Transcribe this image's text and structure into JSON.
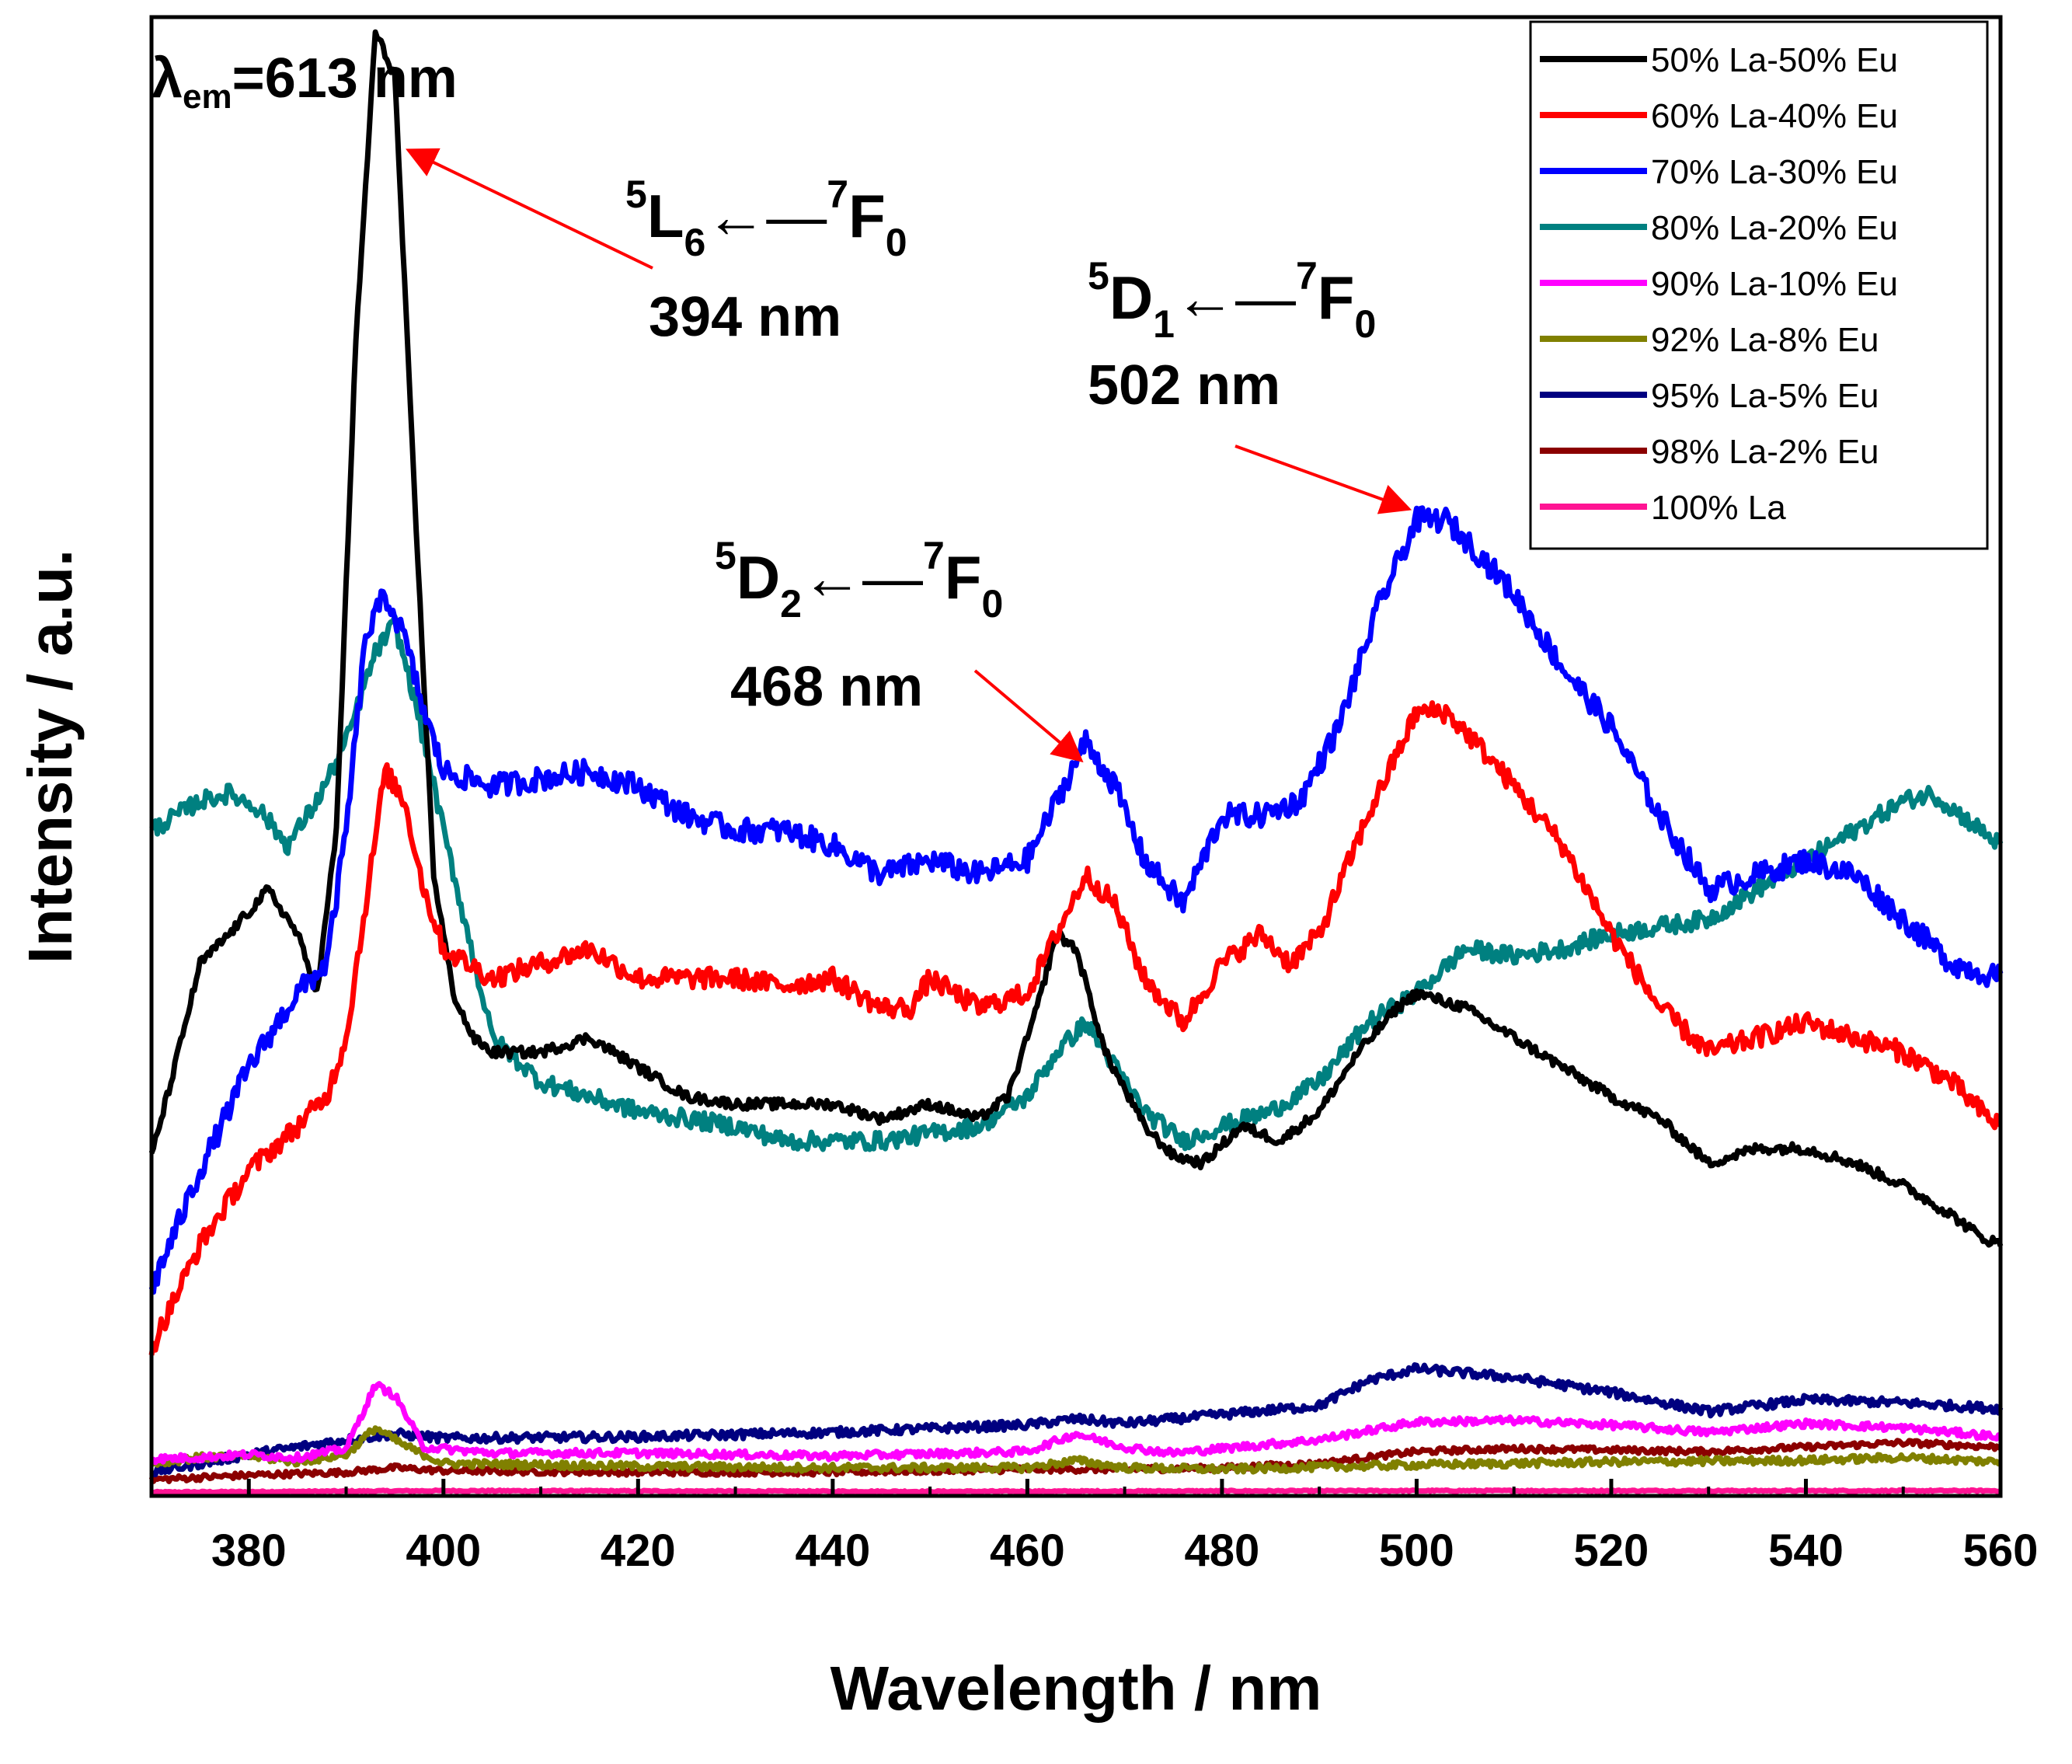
{
  "chart_data": {
    "type": "line",
    "xlabel": "Wavelength / nm",
    "ylabel": "Intensity / a.u.",
    "xlim": [
      370,
      560
    ],
    "ylim": [
      0,
      100
    ],
    "xticks": [
      "380",
      "400",
      "420",
      "440",
      "460",
      "480",
      "500",
      "520",
      "540",
      "560"
    ],
    "yticks_visible": false,
    "legend_position": "top-right",
    "series": [
      {
        "name": "50% La-50% Eu",
        "color": "#000000",
        "points": [
          [
            370,
            23
          ],
          [
            372,
            28
          ],
          [
            375,
            36
          ],
          [
            378,
            38
          ],
          [
            382,
            41
          ],
          [
            385,
            38
          ],
          [
            387,
            34
          ],
          [
            389,
            45
          ],
          [
            391,
            78
          ],
          [
            393,
            99
          ],
          [
            395,
            96
          ],
          [
            397,
            68
          ],
          [
            399,
            42
          ],
          [
            401,
            34
          ],
          [
            403,
            31
          ],
          [
            405,
            30
          ],
          [
            410,
            30
          ],
          [
            415,
            31
          ],
          [
            420,
            29
          ],
          [
            425,
            27
          ],
          [
            430,
            26.5
          ],
          [
            435,
            26.5
          ],
          [
            440,
            26.5
          ],
          [
            445,
            25.5
          ],
          [
            450,
            26.5
          ],
          [
            455,
            25.5
          ],
          [
            458,
            27
          ],
          [
            461,
            33
          ],
          [
            463,
            38
          ],
          [
            465,
            37
          ],
          [
            468,
            30
          ],
          [
            472,
            25
          ],
          [
            475,
            23
          ],
          [
            478,
            22.5
          ],
          [
            482,
            25
          ],
          [
            486,
            24
          ],
          [
            490,
            26
          ],
          [
            494,
            30
          ],
          [
            498,
            33
          ],
          [
            500,
            34
          ],
          [
            505,
            33
          ],
          [
            510,
            31
          ],
          [
            515,
            29
          ],
          [
            520,
            27
          ],
          [
            525,
            25.5
          ],
          [
            530,
            22.5
          ],
          [
            535,
            23.5
          ],
          [
            540,
            23.5
          ],
          [
            545,
            22.5
          ],
          [
            550,
            21
          ],
          [
            555,
            19
          ],
          [
            558,
            17.5
          ],
          [
            560,
            17
          ]
        ]
      },
      {
        "name": "60% La-40% Eu",
        "color": "#ff0000",
        "points": [
          [
            370,
            10
          ],
          [
            375,
            17
          ],
          [
            380,
            22
          ],
          [
            385,
            25
          ],
          [
            388,
            27
          ],
          [
            390,
            31
          ],
          [
            392,
            40
          ],
          [
            394,
            49
          ],
          [
            396,
            47
          ],
          [
            398,
            41
          ],
          [
            400,
            37
          ],
          [
            405,
            35
          ],
          [
            410,
            36
          ],
          [
            415,
            37
          ],
          [
            420,
            35
          ],
          [
            425,
            35
          ],
          [
            430,
            35
          ],
          [
            435,
            34.5
          ],
          [
            440,
            35
          ],
          [
            445,
            33
          ],
          [
            448,
            33
          ],
          [
            450,
            35
          ],
          [
            455,
            33
          ],
          [
            460,
            34
          ],
          [
            463,
            38
          ],
          [
            466,
            42
          ],
          [
            469,
            40
          ],
          [
            472,
            35
          ],
          [
            476,
            32
          ],
          [
            480,
            36
          ],
          [
            484,
            38
          ],
          [
            487,
            36
          ],
          [
            490,
            38
          ],
          [
            495,
            46
          ],
          [
            500,
            53
          ],
          [
            503,
            53
          ],
          [
            506,
            51
          ],
          [
            510,
            48
          ],
          [
            515,
            44
          ],
          [
            520,
            38
          ],
          [
            525,
            33
          ],
          [
            530,
            30
          ],
          [
            535,
            31
          ],
          [
            540,
            32
          ],
          [
            545,
            31
          ],
          [
            550,
            30
          ],
          [
            555,
            28
          ],
          [
            558,
            26
          ],
          [
            560,
            25
          ]
        ]
      },
      {
        "name": "70% La-30% Eu",
        "color": "#0000ff",
        "points": [
          [
            370,
            14
          ],
          [
            375,
            22
          ],
          [
            380,
            29
          ],
          [
            385,
            34
          ],
          [
            388,
            36
          ],
          [
            390,
            45
          ],
          [
            392,
            58
          ],
          [
            394,
            61
          ],
          [
            396,
            58
          ],
          [
            398,
            53
          ],
          [
            400,
            49
          ],
          [
            405,
            48
          ],
          [
            410,
            48.5
          ],
          [
            415,
            49
          ],
          [
            420,
            48
          ],
          [
            425,
            46
          ],
          [
            430,
            45
          ],
          [
            435,
            45
          ],
          [
            440,
            44
          ],
          [
            445,
            42
          ],
          [
            450,
            43
          ],
          [
            455,
            42
          ],
          [
            460,
            43
          ],
          [
            463,
            47
          ],
          [
            466,
            51
          ],
          [
            469,
            48
          ],
          [
            472,
            43
          ],
          [
            476,
            40
          ],
          [
            480,
            46
          ],
          [
            484,
            46
          ],
          [
            488,
            47
          ],
          [
            492,
            52
          ],
          [
            496,
            60
          ],
          [
            500,
            66
          ],
          [
            503,
            66
          ],
          [
            506,
            64
          ],
          [
            510,
            61
          ],
          [
            515,
            56
          ],
          [
            520,
            52
          ],
          [
            525,
            46
          ],
          [
            530,
            41
          ],
          [
            535,
            42
          ],
          [
            540,
            43
          ],
          [
            545,
            42
          ],
          [
            550,
            39
          ],
          [
            555,
            36
          ],
          [
            560,
            35
          ]
        ]
      },
      {
        "name": "80% La-20% Eu",
        "color": "#008080",
        "points": [
          [
            370,
            45
          ],
          [
            375,
            47
          ],
          [
            378,
            47.5
          ],
          [
            381,
            46.5
          ],
          [
            384,
            44
          ],
          [
            387,
            47
          ],
          [
            390,
            51
          ],
          [
            393,
            57
          ],
          [
            395,
            59
          ],
          [
            397,
            54
          ],
          [
            400,
            45
          ],
          [
            405,
            31
          ],
          [
            410,
            28
          ],
          [
            415,
            27
          ],
          [
            420,
            26
          ],
          [
            425,
            25.5
          ],
          [
            430,
            25
          ],
          [
            435,
            24
          ],
          [
            440,
            24
          ],
          [
            445,
            24
          ],
          [
            450,
            24.5
          ],
          [
            455,
            25
          ],
          [
            460,
            27
          ],
          [
            463,
            30
          ],
          [
            466,
            32
          ],
          [
            469,
            29
          ],
          [
            472,
            26
          ],
          [
            476,
            24
          ],
          [
            480,
            25
          ],
          [
            485,
            26
          ],
          [
            490,
            28
          ],
          [
            495,
            32
          ],
          [
            500,
            34
          ],
          [
            505,
            37
          ],
          [
            510,
            36.5
          ],
          [
            515,
            37
          ],
          [
            520,
            38
          ],
          [
            525,
            38.5
          ],
          [
            530,
            39
          ],
          [
            535,
            41
          ],
          [
            540,
            43
          ],
          [
            545,
            45
          ],
          [
            550,
            47
          ],
          [
            553,
            47.5
          ],
          [
            556,
            46
          ],
          [
            560,
            44
          ]
        ]
      },
      {
        "name": "90% La-10% Eu",
        "color": "#ff00ff",
        "points": [
          [
            370,
            2.5
          ],
          [
            375,
            2.6
          ],
          [
            380,
            2.8
          ],
          [
            385,
            2.6
          ],
          [
            390,
            3.2
          ],
          [
            393,
            7.5
          ],
          [
            395,
            6.8
          ],
          [
            398,
            3.3
          ],
          [
            405,
            2.9
          ],
          [
            420,
            2.9
          ],
          [
            440,
            2.7
          ],
          [
            460,
            3.0
          ],
          [
            465,
            4.2
          ],
          [
            470,
            3.3
          ],
          [
            475,
            2.9
          ],
          [
            490,
            3.8
          ],
          [
            500,
            5.0
          ],
          [
            510,
            5.1
          ],
          [
            520,
            4.8
          ],
          [
            530,
            4.3
          ],
          [
            540,
            4.9
          ],
          [
            550,
            4.6
          ],
          [
            560,
            4.0
          ]
        ]
      },
      {
        "name": "92% La-8% Eu",
        "color": "#808000",
        "points": [
          [
            370,
            2.2
          ],
          [
            375,
            2.6
          ],
          [
            380,
            2.7
          ],
          [
            385,
            2.3
          ],
          [
            390,
            2.8
          ],
          [
            393,
            4.6
          ],
          [
            396,
            3.4
          ],
          [
            400,
            2.2
          ],
          [
            420,
            2.0
          ],
          [
            440,
            1.9
          ],
          [
            460,
            1.9
          ],
          [
            465,
            2.4
          ],
          [
            470,
            1.9
          ],
          [
            480,
            1.8
          ],
          [
            500,
            2.1
          ],
          [
            520,
            2.3
          ],
          [
            540,
            2.4
          ],
          [
            550,
            2.6
          ],
          [
            560,
            2.3
          ]
        ]
      },
      {
        "name": "95% La-5% Eu",
        "color": "#000080",
        "points": [
          [
            370,
            1.6
          ],
          [
            380,
            2.8
          ],
          [
            390,
            3.8
          ],
          [
            395,
            4.2
          ],
          [
            400,
            3.9
          ],
          [
            420,
            4.0
          ],
          [
            440,
            4.3
          ],
          [
            460,
            4.8
          ],
          [
            465,
            5.2
          ],
          [
            470,
            4.9
          ],
          [
            480,
            5.5
          ],
          [
            490,
            6.1
          ],
          [
            495,
            7.8
          ],
          [
            500,
            8.6
          ],
          [
            505,
            8.3
          ],
          [
            510,
            8.0
          ],
          [
            520,
            7.0
          ],
          [
            530,
            5.7
          ],
          [
            540,
            6.5
          ],
          [
            550,
            6.3
          ],
          [
            560,
            5.9
          ]
        ]
      },
      {
        "name": "98% La-2% Eu",
        "color": "#8b0000",
        "points": [
          [
            370,
            1.1
          ],
          [
            380,
            1.4
          ],
          [
            390,
            1.6
          ],
          [
            395,
            1.9
          ],
          [
            400,
            1.7
          ],
          [
            420,
            1.6
          ],
          [
            440,
            1.6
          ],
          [
            460,
            1.8
          ],
          [
            470,
            1.8
          ],
          [
            480,
            1.9
          ],
          [
            490,
            2.2
          ],
          [
            500,
            3.0
          ],
          [
            510,
            3.2
          ],
          [
            520,
            3.1
          ],
          [
            530,
            3.0
          ],
          [
            540,
            3.3
          ],
          [
            550,
            3.6
          ],
          [
            560,
            3.3
          ]
        ]
      },
      {
        "name": "100% La",
        "color": "#ff1493",
        "points": [
          [
            370,
            0.25
          ],
          [
            400,
            0.35
          ],
          [
            450,
            0.3
          ],
          [
            500,
            0.35
          ],
          [
            560,
            0.35
          ]
        ]
      }
    ],
    "annotations": [
      {
        "id": "L6",
        "upper": "5",
        "letter": "L",
        "sub": "6",
        "upper2": "7",
        "letter2": "F",
        "sub2": "0",
        "wavelength_label": "394 nm",
        "target": [
          394,
          91
        ]
      },
      {
        "id": "D2",
        "upper": "5",
        "letter": "D",
        "sub": "2",
        "upper2": "7",
        "letter2": "F",
        "sub2": "0",
        "wavelength_label": "468 nm",
        "target": [
          466,
          50
        ]
      },
      {
        "id": "D1",
        "upper": "5",
        "letter": "D",
        "sub": "1",
        "upper2": "7",
        "letter2": "F",
        "sub2": "0",
        "wavelength_label": "502 nm",
        "target": [
          500,
          67
        ]
      }
    ],
    "excitation_label": {
      "symbol": "λ",
      "subscript": "em",
      "text": "=613 nm"
    }
  }
}
